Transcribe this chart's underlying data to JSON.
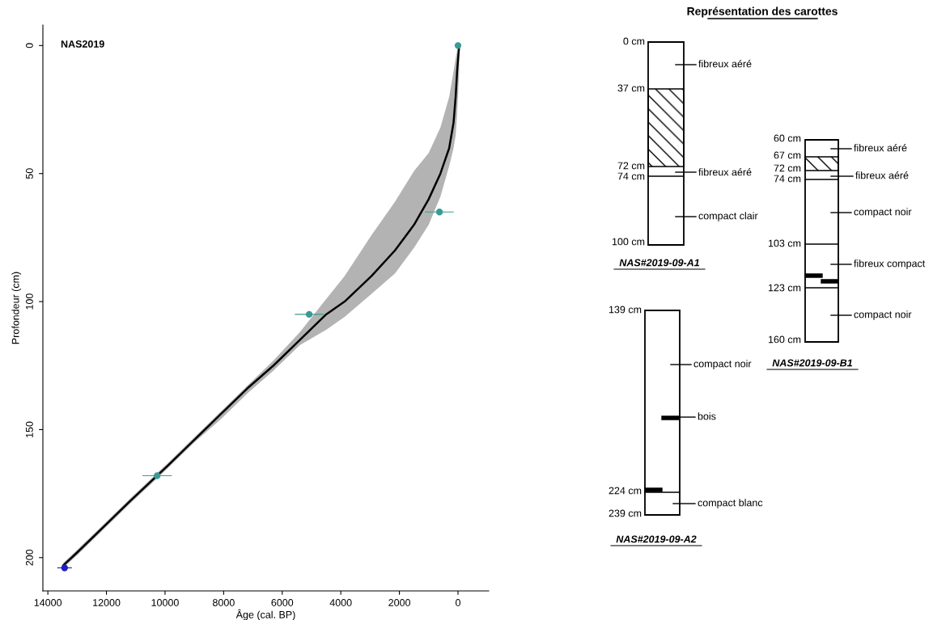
{
  "chart_data": [
    {
      "type": "line",
      "xlabel": "Âge (cal. BP)",
      "ylabel": "Profondeur (cm)",
      "annotations": [
        "NAS2019"
      ],
      "xlim": [
        14170,
        -1050
      ],
      "ylim": [
        213,
        -8
      ],
      "xticks": [
        14000,
        12000,
        10000,
        8000,
        6000,
        4000,
        2000,
        0
      ],
      "yticks": [
        0,
        50,
        100,
        150,
        200
      ],
      "grid": false,
      "legend": false,
      "series": [
        {
          "type": "line",
          "color": "#000000",
          "x": [
            -40,
            30,
            80,
            150,
            300,
            600,
            1000,
            1500,
            2150,
            2950,
            3870,
            4500,
            5400,
            6300,
            7200,
            8100,
            9000,
            9900,
            10270,
            11200,
            12100,
            13000,
            13470
          ],
          "values": [
            0,
            10,
            20,
            30,
            40,
            50,
            60,
            70,
            80,
            90,
            100,
            105,
            115,
            125,
            134,
            144,
            154,
            164,
            168,
            178,
            188,
            198,
            203
          ],
          "lower": [
            0,
            2,
            5,
            10,
            20,
            32,
            42,
            49,
            61,
            74,
            90,
            99,
            112,
            123,
            133,
            143,
            153,
            163,
            167,
            177,
            187,
            197,
            202
          ],
          "upper": [
            10,
            27,
            35,
            40,
            47,
            59,
            70,
            79,
            89,
            97,
            106,
            111,
            117,
            127,
            136,
            146,
            155,
            165,
            169,
            179,
            189,
            199,
            204
          ]
        },
        {
          "type": "scatter",
          "marker": "circle",
          "x": [
            0,
            633,
            5080,
            10270,
            13430
          ],
          "values": [
            0,
            65,
            105,
            168,
            204
          ],
          "xerrors": [
            null,
            490,
            490,
            500,
            250
          ],
          "colors": [
            "#3a9a94",
            "#3a9a94",
            "#3a9a94",
            "#3a9a94",
            "#1f1fbf"
          ]
        }
      ]
    },
    {
      "type": "other",
      "title": "Représentation des carottes",
      "annotations": [
        "0 cm",
        "37 cm",
        "72 cm",
        "74 cm",
        "100 cm",
        "fibreux aéré",
        "fibreux aéré",
        "compact clair",
        "NAS#2019-09-A1",
        "60 cm",
        "67 cm",
        "72 cm",
        "74 cm",
        "103 cm",
        "123 cm",
        "160 cm",
        "fibreux aéré",
        "fibreux aéré",
        "compact noir",
        "fibreux compact",
        "compact noir",
        "NAS#2019-09-B1",
        "139 cm",
        "224 cm",
        "239 cm",
        "compact noir",
        "bois",
        "compact blanc",
        "NAS#2019-09-A2"
      ]
    }
  ]
}
